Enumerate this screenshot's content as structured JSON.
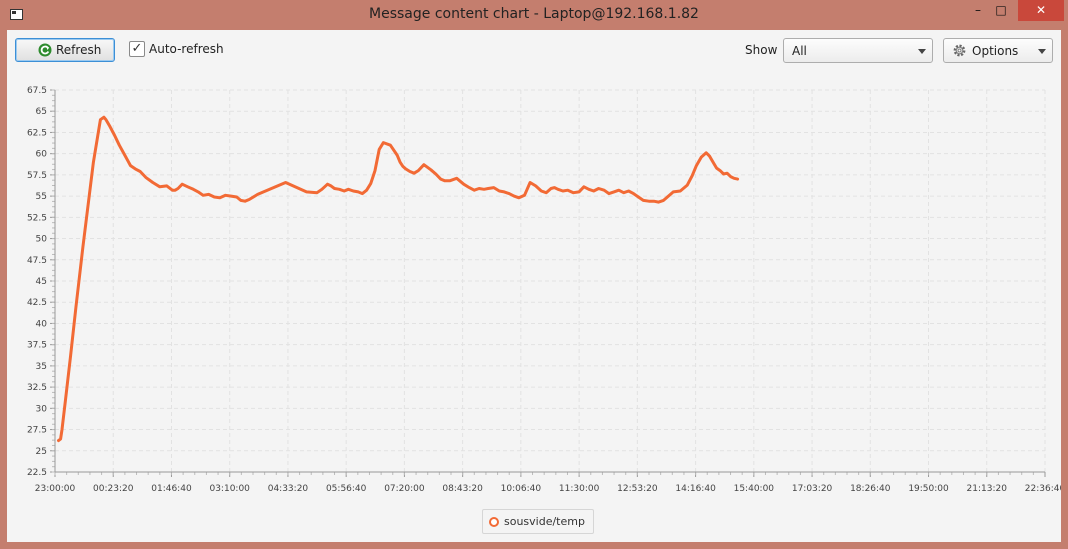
{
  "window": {
    "title": "Message content chart - Laptop@192.168.1.82",
    "minimize": "–",
    "maximize": "□",
    "close": "✕"
  },
  "toolbar": {
    "refresh_label": "Refresh",
    "refresh_icon": "refresh-icon",
    "auto_refresh_label": "Auto-refresh",
    "auto_refresh_checked": true,
    "show_label": "Show",
    "show_value": "All",
    "options_label": "Options",
    "options_icon": "gear-icon"
  },
  "colors": {
    "series": "#f26a35",
    "grid": "#e2e2e2",
    "close": "#c9483b",
    "focus": "#3c8fd6"
  },
  "chart_data": {
    "type": "line",
    "title": "",
    "xlabel": "",
    "ylabel": "",
    "x_ticks": [
      "23:00:00",
      "00:23:20",
      "01:46:40",
      "03:10:00",
      "04:33:20",
      "05:56:40",
      "07:20:00",
      "08:43:20",
      "10:06:40",
      "11:30:00",
      "12:53:20",
      "14:16:40",
      "15:40:00",
      "17:03:20",
      "18:26:40",
      "19:50:00",
      "21:13:20",
      "22:36:40"
    ],
    "y_ticks": [
      22.5,
      25,
      27.5,
      30,
      32.5,
      35,
      37.5,
      40,
      42.5,
      45,
      47.5,
      50,
      52.5,
      55,
      57.5,
      60,
      62.5,
      65,
      67.5
    ],
    "ylim": [
      22.5,
      67.5
    ],
    "xlim_minutes": [
      0,
      1417
    ],
    "grid": true,
    "legend_position": "bottom",
    "series": [
      {
        "name": "sousvide/temp",
        "x_minutes": [
          5,
          8,
          10,
          15,
          22,
          30,
          40,
          55,
          65,
          70,
          73,
          78,
          85,
          92,
          100,
          108,
          115,
          122,
          130,
          140,
          150,
          160,
          168,
          172,
          176,
          182,
          190,
          198,
          205,
          212,
          220,
          228,
          236,
          244,
          252,
          260,
          266,
          272,
          278,
          290,
          330,
          360,
          375,
          382,
          390,
          395,
          400,
          407,
          414,
          420,
          427,
          434,
          440,
          446,
          452,
          458,
          464,
          470,
          480,
          490,
          494,
          498,
          502,
          508,
          514,
          520,
          528,
          538,
          545,
          552,
          558,
          565,
          575,
          585,
          593,
          600,
          607,
          614,
          620,
          628,
          636,
          643,
          650,
          657,
          664,
          672,
          680,
          688,
          696,
          703,
          710,
          715,
          720,
          727,
          734,
          742,
          750,
          757,
          764,
          771,
          778,
          786,
          793,
          800,
          807,
          814,
          821,
          828,
          835,
          842,
          850,
          857,
          864,
          871,
          878,
          885,
          895,
          905,
          912,
          918,
          925,
          932,
          937,
          942,
          947,
          952,
          957,
          962,
          967,
          972,
          977
        ],
        "values": [
          26.2,
          26.4,
          27.5,
          31,
          36,
          42,
          49,
          59,
          64,
          64.3,
          64,
          63.3,
          62.2,
          61,
          59.8,
          58.6,
          58.2,
          57.9,
          57.2,
          56.6,
          56.1,
          56.2,
          55.7,
          55.7,
          55.9,
          56.4,
          56.1,
          55.8,
          55.5,
          55.1,
          55.2,
          54.9,
          54.8,
          55.1,
          55,
          54.9,
          54.5,
          54.4,
          54.6,
          55.2,
          56.6,
          55.5,
          55.4,
          55.8,
          56.4,
          56.2,
          55.9,
          55.8,
          55.6,
          55.8,
          55.6,
          55.5,
          55.3,
          55.7,
          56.5,
          58,
          60.5,
          61.3,
          61,
          59.8,
          59,
          58.5,
          58.2,
          57.9,
          57.7,
          58,
          58.7,
          58.1,
          57.6,
          57,
          56.8,
          56.8,
          57.1,
          56.4,
          56,
          55.7,
          55.9,
          55.8,
          55.9,
          56,
          55.6,
          55.5,
          55.3,
          55,
          54.8,
          55.1,
          56.6,
          56.2,
          55.6,
          55.4,
          55.9,
          56,
          55.8,
          55.6,
          55.7,
          55.4,
          55.5,
          56.1,
          55.8,
          55.6,
          55.9,
          55.7,
          55.3,
          55.5,
          55.7,
          55.4,
          55.6,
          55.3,
          54.9,
          54.5,
          54.4,
          54.4,
          54.3,
          54.5,
          55,
          55.5,
          55.6,
          56.3,
          57.4,
          58.6,
          59.6,
          60.1,
          59.7,
          59,
          58.3,
          58,
          57.6,
          57.7,
          57.3,
          57.1,
          57
        ]
      }
    ]
  }
}
